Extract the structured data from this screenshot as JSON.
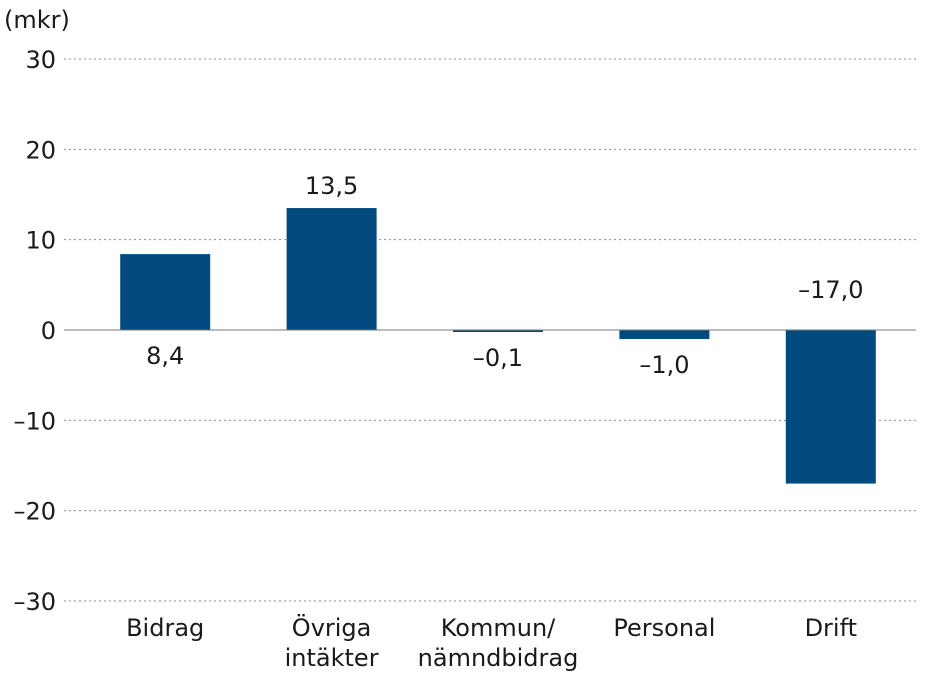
{
  "chart_data": {
    "type": "bar",
    "unit_label": "(mkr)",
    "categories": [
      [
        "Bidrag"
      ],
      [
        "Övriga",
        "intäkter"
      ],
      [
        "Kommun/",
        "nämndbidrag"
      ],
      [
        "Personal"
      ],
      [
        "Drift"
      ]
    ],
    "values": [
      8.4,
      13.5,
      -0.1,
      -1.0,
      -17.0
    ],
    "value_labels": [
      "8,4",
      "13,5",
      "–0,1",
      "–1,0",
      "–17,0"
    ],
    "y_ticks": [
      30,
      20,
      10,
      0,
      -10,
      -20,
      -30
    ],
    "y_tick_labels": [
      "30",
      "20",
      "10",
      "0",
      "–10",
      "–20",
      "–30"
    ],
    "ylim": [
      -30,
      30
    ],
    "grid": true,
    "bar_color": "#004a7f"
  }
}
